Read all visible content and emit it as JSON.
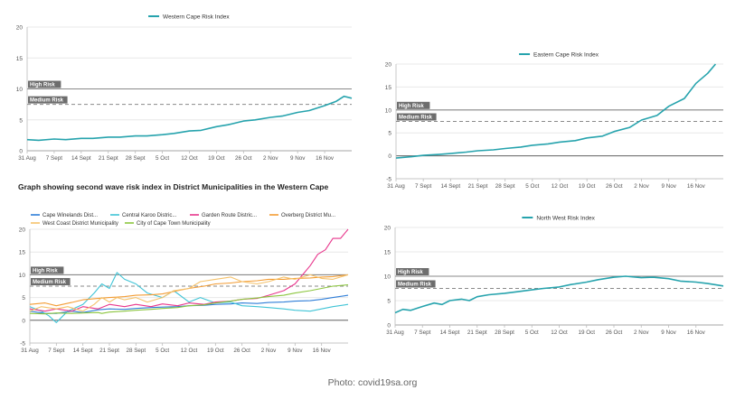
{
  "heading": "Graph showing second wave risk index in District Municipalities in the Western Cape",
  "credit": "Photo: covid19sa.org",
  "colors": {
    "teal": "#26a3ad",
    "threshold": "#8a8a8a",
    "label_bg": "#6d6d6d",
    "axis": "#666666",
    "grid": "#e8e8e8"
  },
  "chart_data": [
    {
      "id": "western-cape",
      "type": "line",
      "title": "",
      "xlabel": "",
      "ylabel": "",
      "ylim": [
        0,
        20
      ],
      "yticks": [
        0,
        5,
        10,
        15,
        20
      ],
      "grid": true,
      "legend": "top-center",
      "categories": [
        "31 Aug",
        "7 Sept",
        "14 Sept",
        "21 Sept",
        "28 Sept",
        "5 Oct",
        "12 Oct",
        "19 Oct",
        "26 Oct",
        "2 Nov",
        "9 Nov",
        "16 Nov"
      ],
      "thresholds": [
        {
          "label": "High Risk",
          "value": 10,
          "style": "solid"
        },
        {
          "label": "Medium Risk",
          "value": 7.5,
          "style": "dashed"
        }
      ],
      "series": [
        {
          "name": "Western Cape Risk Index",
          "color": "#26a3ad",
          "x": [
            0,
            3,
            7,
            10,
            14,
            17,
            21,
            24,
            28,
            31,
            35,
            38,
            42,
            45,
            49,
            52,
            56,
            59,
            63,
            66,
            70,
            73,
            77,
            80,
            82,
            84
          ],
          "values": [
            1.8,
            1.7,
            1.9,
            1.8,
            2.0,
            2.0,
            2.2,
            2.2,
            2.4,
            2.4,
            2.6,
            2.8,
            3.2,
            3.3,
            3.9,
            4.2,
            4.8,
            5.0,
            5.4,
            5.6,
            6.2,
            6.5,
            7.3,
            8.0,
            8.8,
            8.5
          ]
        }
      ]
    },
    {
      "id": "eastern-cape",
      "type": "line",
      "title": "",
      "xlabel": "",
      "ylabel": "",
      "ylim": [
        -5,
        20
      ],
      "yticks": [
        -5,
        0,
        5,
        10,
        15,
        20
      ],
      "grid": true,
      "legend": "top-center",
      "categories": [
        "31 Aug",
        "7 Sept",
        "14 Sept",
        "21 Sept",
        "28 Sept",
        "5 Oct",
        "12 Oct",
        "19 Oct",
        "26 Oct",
        "2 Nov",
        "9 Nov",
        "16 Nov"
      ],
      "thresholds": [
        {
          "label": "High Risk",
          "value": 10,
          "style": "solid"
        },
        {
          "label": "Medium Risk",
          "value": 7.5,
          "style": "dashed"
        }
      ],
      "series": [
        {
          "name": "Eastern Cape Risk Index",
          "color": "#26a3ad",
          "x": [
            0,
            4,
            7,
            11,
            14,
            18,
            21,
            25,
            28,
            32,
            35,
            39,
            42,
            46,
            49,
            53,
            56,
            60,
            63,
            67,
            70,
            74,
            77,
            80,
            82
          ],
          "values": [
            -0.5,
            -0.2,
            0.1,
            0.3,
            0.5,
            0.8,
            1.1,
            1.3,
            1.6,
            1.9,
            2.3,
            2.6,
            3.0,
            3.3,
            3.9,
            4.3,
            5.3,
            6.2,
            7.8,
            8.8,
            10.8,
            12.5,
            15.8,
            18.0,
            20.0
          ]
        }
      ]
    },
    {
      "id": "district-municipalities",
      "type": "line",
      "title": "",
      "xlabel": "",
      "ylabel": "",
      "ylim": [
        -5,
        20
      ],
      "yticks": [
        -5,
        0,
        5,
        10,
        15,
        20
      ],
      "grid": true,
      "legend": "top-left",
      "categories": [
        "31 Aug",
        "7 Sept",
        "14 Sept",
        "21 Sept",
        "28 Sept",
        "5 Oct",
        "12 Oct",
        "19 Oct",
        "26 Oct",
        "2 Nov",
        "9 Nov",
        "16 Nov"
      ],
      "thresholds": [
        {
          "label": "High Risk",
          "value": 10,
          "style": "solid"
        },
        {
          "label": "Medium Risk",
          "value": 7.5,
          "style": "dashed"
        }
      ],
      "series": [
        {
          "name": "Cape Winelands Dist...",
          "color": "#2f7ed8",
          "x": [
            0,
            4,
            7,
            11,
            14,
            18,
            21,
            25,
            28,
            32,
            35,
            39,
            42,
            46,
            49,
            53,
            56,
            60,
            63,
            67,
            70,
            74,
            77,
            80,
            84
          ],
          "values": [
            2.0,
            1.5,
            1.5,
            2.0,
            1.7,
            2.3,
            2.5,
            2.4,
            2.6,
            2.8,
            2.9,
            3.0,
            3.2,
            3.3,
            3.5,
            3.6,
            3.8,
            3.7,
            3.9,
            4.0,
            4.2,
            4.3,
            4.6,
            5.0,
            5.5
          ]
        },
        {
          "name": "Central Karoo Distric...",
          "color": "#40c4d6",
          "x": [
            0,
            3,
            5,
            7,
            10,
            14,
            17,
            19,
            21,
            23,
            25,
            28,
            31,
            35,
            38,
            42,
            45,
            49,
            53,
            56,
            60,
            63,
            67,
            70,
            74,
            77,
            80,
            84
          ],
          "values": [
            3.0,
            2.0,
            1.0,
            -0.5,
            2.0,
            3.5,
            6.0,
            8.0,
            7.0,
            10.5,
            9.0,
            8.0,
            6.0,
            5.0,
            6.5,
            4.0,
            5.0,
            3.8,
            4.0,
            3.2,
            3.0,
            2.8,
            2.5,
            2.2,
            2.0,
            2.5,
            3.0,
            3.5
          ]
        },
        {
          "name": "Garden Route Distric...",
          "color": "#e8368c",
          "x": [
            0,
            4,
            7,
            11,
            14,
            18,
            21,
            25,
            28,
            32,
            35,
            39,
            42,
            46,
            49,
            53,
            56,
            60,
            63,
            67,
            70,
            72,
            74,
            76,
            78,
            80,
            82,
            84
          ],
          "values": [
            2.5,
            2.0,
            2.5,
            2.0,
            3.0,
            2.5,
            3.5,
            3.0,
            3.5,
            3.0,
            3.6,
            3.2,
            3.8,
            3.5,
            4.0,
            4.2,
            4.6,
            4.8,
            5.5,
            6.5,
            8.0,
            10.0,
            12.0,
            14.5,
            15.5,
            18.0,
            18.0,
            20.0
          ]
        },
        {
          "name": "Overberg District Mu...",
          "color": "#f39c33",
          "x": [
            0,
            4,
            7,
            11,
            14,
            18,
            21,
            25,
            28,
            32,
            35,
            39,
            42,
            46,
            49,
            53,
            56,
            60,
            63,
            67,
            70,
            74,
            77,
            80,
            84
          ],
          "values": [
            3.5,
            3.8,
            3.2,
            3.9,
            4.5,
            4.8,
            5.0,
            5.2,
            5.5,
            5.6,
            5.8,
            6.5,
            7.0,
            7.5,
            8.0,
            8.2,
            8.5,
            8.7,
            9.0,
            9.0,
            9.2,
            9.3,
            9.5,
            9.6,
            10.0
          ]
        },
        {
          "name": "West Coast District Municipality",
          "color": "#f5c26b",
          "x": [
            0,
            3,
            7,
            10,
            14,
            17,
            19,
            21,
            23,
            25,
            28,
            31,
            35,
            38,
            42,
            45,
            49,
            53,
            56,
            60,
            63,
            67,
            70,
            74,
            77,
            80,
            84
          ],
          "values": [
            2.0,
            3.0,
            2.5,
            3.0,
            2.0,
            3.5,
            5.0,
            4.0,
            5.0,
            4.5,
            5.0,
            4.0,
            5.0,
            6.5,
            7.0,
            8.5,
            9.0,
            9.5,
            8.5,
            8.0,
            8.5,
            9.5,
            9.0,
            10.0,
            9.2,
            9.0,
            10.0
          ]
        },
        {
          "name": "City of Cape Town Municipality",
          "color": "#8cc63f",
          "x": [
            0,
            4,
            7,
            11,
            14,
            18,
            19,
            21,
            25,
            28,
            32,
            35,
            39,
            42,
            46,
            49,
            53,
            56,
            60,
            63,
            67,
            70,
            74,
            77,
            80,
            84
          ],
          "values": [
            1.5,
            1.4,
            1.6,
            1.5,
            1.6,
            1.7,
            1.5,
            1.8,
            2.0,
            2.2,
            2.4,
            2.6,
            2.8,
            3.2,
            3.4,
            3.8,
            4.2,
            4.6,
            4.9,
            5.2,
            5.5,
            6.0,
            6.5,
            7.0,
            7.5,
            7.8
          ]
        }
      ]
    },
    {
      "id": "north-west",
      "type": "line",
      "title": "",
      "xlabel": "",
      "ylabel": "",
      "ylim": [
        0,
        20
      ],
      "yticks": [
        0,
        5,
        10,
        15,
        20
      ],
      "grid": true,
      "legend": "top-center",
      "categories": [
        "31 Aug",
        "7 Sept",
        "14 Sept",
        "21 Sept",
        "28 Sept",
        "5 Oct",
        "12 Oct",
        "19 Oct",
        "26 Oct",
        "2 Nov",
        "9 Nov",
        "16 Nov"
      ],
      "thresholds": [
        {
          "label": "High Risk",
          "value": 10,
          "style": "solid"
        },
        {
          "label": "Medium Risk",
          "value": 7.5,
          "style": "dashed"
        }
      ],
      "series": [
        {
          "name": "North West Risk Index",
          "color": "#26a3ad",
          "x": [
            0,
            2,
            4,
            7,
            10,
            12,
            14,
            17,
            19,
            21,
            24,
            28,
            31,
            35,
            38,
            42,
            45,
            49,
            52,
            56,
            59,
            63,
            66,
            70,
            73,
            77,
            80,
            84
          ],
          "values": [
            2.5,
            3.2,
            3.0,
            3.8,
            4.5,
            4.2,
            5.0,
            5.3,
            5.0,
            5.8,
            6.2,
            6.5,
            6.8,
            7.2,
            7.5,
            7.8,
            8.3,
            8.8,
            9.3,
            9.8,
            10.0,
            9.7,
            9.8,
            9.5,
            9.0,
            8.8,
            8.5,
            8.0
          ]
        }
      ]
    }
  ]
}
